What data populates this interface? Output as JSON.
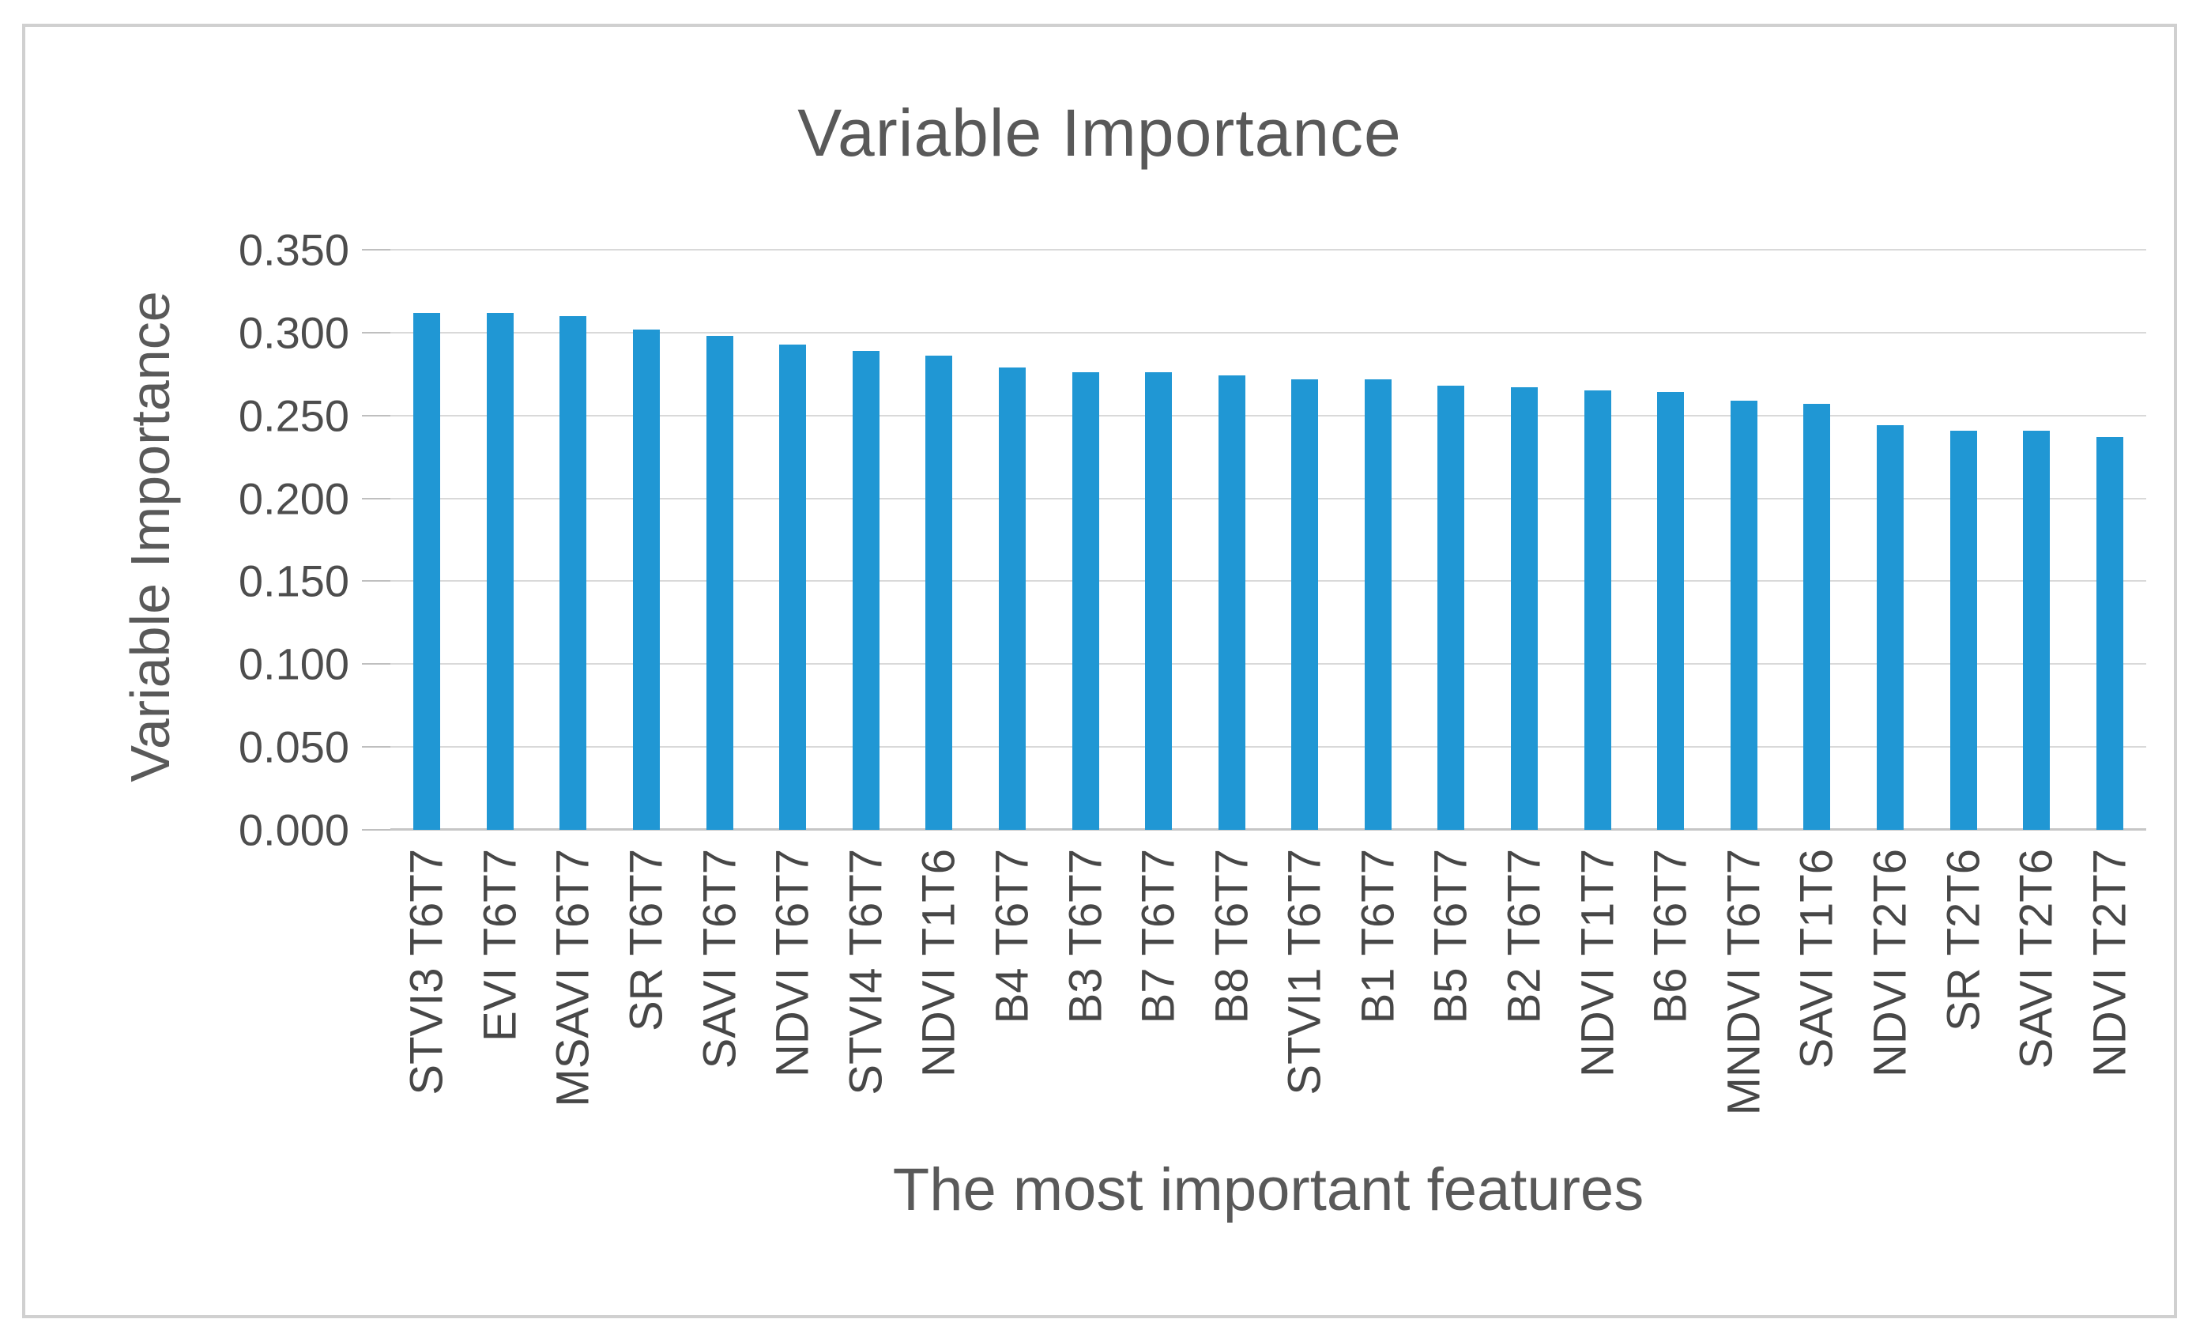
{
  "chart_data": {
    "type": "bar",
    "title": "Variable Importance",
    "xlabel": "The most important features",
    "ylabel": "Variable Importance",
    "categories": [
      "STVI3 T6T7",
      "EVI T6T7",
      "MSAVI T6T7",
      "SR T6T7",
      "SAVI T6T7",
      "NDVI T6T7",
      "STVI4 T6T7",
      "NDVI T1T6",
      "B4 T6T7",
      "B3 T6T7",
      "B7 T6T7",
      "B8 T6T7",
      "STVI1 T6T7",
      "B1 T6T7",
      "B5 T6T7",
      "B2 T6T7",
      "NDVI T1T7",
      "B6 T6T7",
      "MNDVI T6T7",
      "SAVI T1T6",
      "NDVI T2T6",
      "SR T2T6",
      "SAVI T2T6",
      "NDVI T2T7"
    ],
    "values": [
      0.312,
      0.312,
      0.31,
      0.302,
      0.298,
      0.293,
      0.289,
      0.286,
      0.279,
      0.276,
      0.276,
      0.274,
      0.272,
      0.272,
      0.268,
      0.267,
      0.265,
      0.264,
      0.259,
      0.257,
      0.244,
      0.241,
      0.241,
      0.237
    ],
    "ylim": [
      0,
      0.35
    ],
    "ytick_interval": 0.05,
    "ytick_labels_top_to_bottom": [
      "0.350",
      "0.300",
      "0.250",
      "0.200",
      "0.150",
      "0.100",
      "0.050",
      "0.000"
    ],
    "grid": "horizontal",
    "legend": "none",
    "bar_color": "#2097d4",
    "gridline_color": "#d9d9d9",
    "tick_color": "#bfbfbf",
    "title_color": "#595959",
    "tick_label_color": "#4d4d4d",
    "frame_border_color": "#d0d0d0"
  }
}
